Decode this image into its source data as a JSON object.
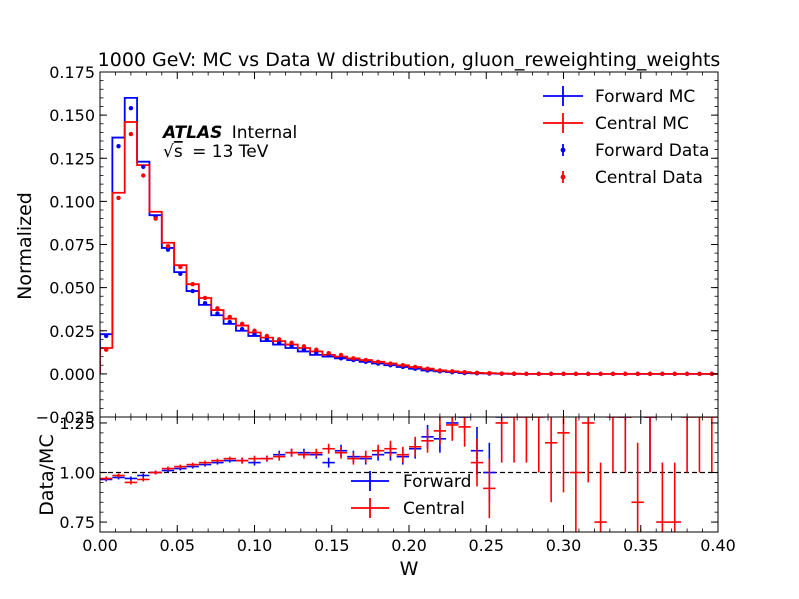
{
  "chart_data": [
    {
      "type": "line",
      "panel": "main",
      "title": "1000 GeV: MC vs Data W distribution, gluon_reweighting_weights",
      "xlabel": "",
      "ylabel": "Normalized",
      "xlim": [
        0.0,
        0.4
      ],
      "ylim": [
        -0.025,
        0.175
      ],
      "yticks": [
        "−0.025",
        "0.000",
        "0.025",
        "0.050",
        "0.075",
        "0.100",
        "0.125",
        "0.150",
        "0.175"
      ],
      "annotation": {
        "experiment": "ATLAS",
        "status": "Internal",
        "energy_sqrt": "s",
        "energy_value": "= 13 TeV"
      },
      "legend_position": "top-right",
      "legend": [
        "Forward MC",
        "Central MC",
        "Forward Data",
        "Central Data"
      ],
      "bin_edges": [
        0.0,
        0.008,
        0.016,
        0.024,
        0.032,
        0.04,
        0.048,
        0.056,
        0.064,
        0.072,
        0.08,
        0.088,
        0.096,
        0.104,
        0.112,
        0.12,
        0.128,
        0.136,
        0.144,
        0.152,
        0.16,
        0.168,
        0.176,
        0.184,
        0.192,
        0.2,
        0.208,
        0.216,
        0.224,
        0.232,
        0.24,
        0.248,
        0.256,
        0.264,
        0.272,
        0.28,
        0.288,
        0.296,
        0.304,
        0.312,
        0.32,
        0.328,
        0.336,
        0.344,
        0.352,
        0.36,
        0.368,
        0.376,
        0.384,
        0.392,
        0.4
      ],
      "series": [
        {
          "name": "Forward MC",
          "kind": "step",
          "color": "#0000ff",
          "values": [
            0.023,
            0.137,
            0.16,
            0.123,
            0.092,
            0.073,
            0.059,
            0.048,
            0.04,
            0.034,
            0.029,
            0.025,
            0.022,
            0.019,
            0.017,
            0.015,
            0.013,
            0.011,
            0.01,
            0.009,
            0.008,
            0.007,
            0.006,
            0.005,
            0.004,
            0.003,
            0.002,
            0.0015,
            0.001,
            0.0005,
            0.0003,
            0.0002,
            0.0001,
            0,
            0,
            0,
            0,
            0,
            0,
            0,
            0,
            0,
            0,
            0,
            0,
            0,
            0,
            0,
            0,
            0
          ]
        },
        {
          "name": "Central MC",
          "kind": "step",
          "color": "#ff0000",
          "values": [
            0.015,
            0.105,
            0.146,
            0.121,
            0.094,
            0.076,
            0.063,
            0.052,
            0.044,
            0.037,
            0.032,
            0.028,
            0.024,
            0.021,
            0.019,
            0.017,
            0.015,
            0.013,
            0.011,
            0.01,
            0.009,
            0.008,
            0.007,
            0.006,
            0.005,
            0.004,
            0.003,
            0.002,
            0.0015,
            0.001,
            0.0006,
            0.0004,
            0.0002,
            0.0001,
            0,
            0,
            0,
            0,
            0,
            0,
            0,
            0,
            0,
            0,
            0,
            0,
            0,
            0,
            0,
            0
          ]
        },
        {
          "name": "Forward Data",
          "kind": "points",
          "color": "#0000ff",
          "values": [
            0.022,
            0.132,
            0.154,
            0.12,
            0.091,
            0.072,
            0.058,
            0.048,
            0.041,
            0.035,
            0.03,
            0.026,
            0.023,
            0.02,
            0.018,
            0.016,
            0.014,
            0.012,
            0.011,
            0.009,
            0.008,
            0.007,
            0.006,
            0.005,
            0.004,
            0.003,
            0.002,
            0.0015,
            0.001,
            0.0005,
            0.0003,
            0.0002,
            0.0001,
            0,
            0,
            0,
            0,
            0,
            0,
            0,
            0,
            0,
            0,
            0,
            0,
            0,
            0,
            0,
            0,
            0
          ]
        },
        {
          "name": "Central Data",
          "kind": "points",
          "color": "#ff0000",
          "values": [
            0.014,
            0.102,
            0.139,
            0.115,
            0.09,
            0.074,
            0.062,
            0.052,
            0.044,
            0.038,
            0.033,
            0.029,
            0.025,
            0.022,
            0.02,
            0.018,
            0.016,
            0.014,
            0.012,
            0.011,
            0.009,
            0.008,
            0.007,
            0.006,
            0.005,
            0.004,
            0.003,
            0.002,
            0.0015,
            0.001,
            0.0006,
            0.0004,
            0.0002,
            0.0001,
            0,
            0,
            0,
            0,
            0,
            0,
            0,
            0,
            0,
            0,
            0,
            0,
            0,
            0,
            0,
            0
          ]
        }
      ]
    },
    {
      "type": "line",
      "panel": "ratio",
      "xlabel": "W",
      "ylabel": "Data/MC",
      "xlim": [
        0.0,
        0.4
      ],
      "ylim": [
        0.7,
        1.28
      ],
      "xticks": [
        "0.00",
        "0.05",
        "0.10",
        "0.15",
        "0.20",
        "0.25",
        "0.30",
        "0.35",
        "0.40"
      ],
      "yticks": [
        "0.75",
        "1.00",
        "1.25"
      ],
      "reference_line": 1.0,
      "legend_position": "lower-center",
      "legend": [
        "Forward",
        "Central"
      ],
      "series": [
        {
          "name": "Forward",
          "color": "#0000ff",
          "values": [
            0.965,
            0.975,
            0.97,
            0.985,
            1.0,
            1.01,
            1.02,
            1.03,
            1.04,
            1.05,
            1.06,
            1.06,
            1.05,
            1.07,
            1.09,
            1.1,
            1.1,
            1.09,
            1.05,
            1.11,
            1.08,
            1.07,
            1.09,
            1.1,
            1.08,
            1.12,
            1.18,
            1.17,
            1.25,
            1.3,
            1.11,
            1.0,
            1.3,
            null,
            null,
            null,
            null,
            null,
            null,
            null,
            null,
            null,
            1.3,
            null,
            1.3,
            null,
            null,
            null,
            null,
            null
          ],
          "errors": [
            0.01,
            0.01,
            0.01,
            0.01,
            0.01,
            0.01,
            0.01,
            0.01,
            0.01,
            0.01,
            0.01,
            0.015,
            0.015,
            0.015,
            0.02,
            0.02,
            0.02,
            0.02,
            0.025,
            0.03,
            0.03,
            0.03,
            0.03,
            0.04,
            0.04,
            0.05,
            0.06,
            0.07,
            0.08,
            0.1,
            0.12,
            0.15,
            0.2,
            null,
            null,
            null,
            null,
            null,
            null,
            null,
            null,
            null,
            0.3,
            null,
            0.3,
            null,
            null,
            null,
            null,
            null
          ]
        },
        {
          "name": "Central",
          "color": "#ff0000",
          "values": [
            0.97,
            0.985,
            0.95,
            0.965,
            1.0,
            1.02,
            1.03,
            1.04,
            1.05,
            1.06,
            1.07,
            1.06,
            1.07,
            1.07,
            1.08,
            1.1,
            1.09,
            1.1,
            1.12,
            1.1,
            1.07,
            1.08,
            1.11,
            1.12,
            1.09,
            1.13,
            1.16,
            1.21,
            1.24,
            1.23,
            1.05,
            0.92,
            1.25,
            1.3,
            1.3,
            1.3,
            1.15,
            1.2,
            1.0,
            1.25,
            0.75,
            1.3,
            1.3,
            0.85,
            1.3,
            0.75,
            0.75,
            1.3,
            1.3,
            1.3
          ],
          "errors": [
            0.01,
            0.01,
            0.01,
            0.01,
            0.01,
            0.01,
            0.01,
            0.01,
            0.01,
            0.01,
            0.01,
            0.015,
            0.015,
            0.015,
            0.02,
            0.02,
            0.02,
            0.02,
            0.025,
            0.03,
            0.03,
            0.03,
            0.03,
            0.04,
            0.04,
            0.05,
            0.06,
            0.07,
            0.08,
            0.1,
            0.12,
            0.15,
            0.2,
            0.25,
            0.25,
            0.3,
            0.3,
            0.3,
            0.3,
            0.3,
            0.3,
            0.3,
            0.3,
            0.3,
            0.3,
            0.3,
            0.3,
            0.3,
            0.3,
            0.3
          ]
        }
      ]
    }
  ]
}
